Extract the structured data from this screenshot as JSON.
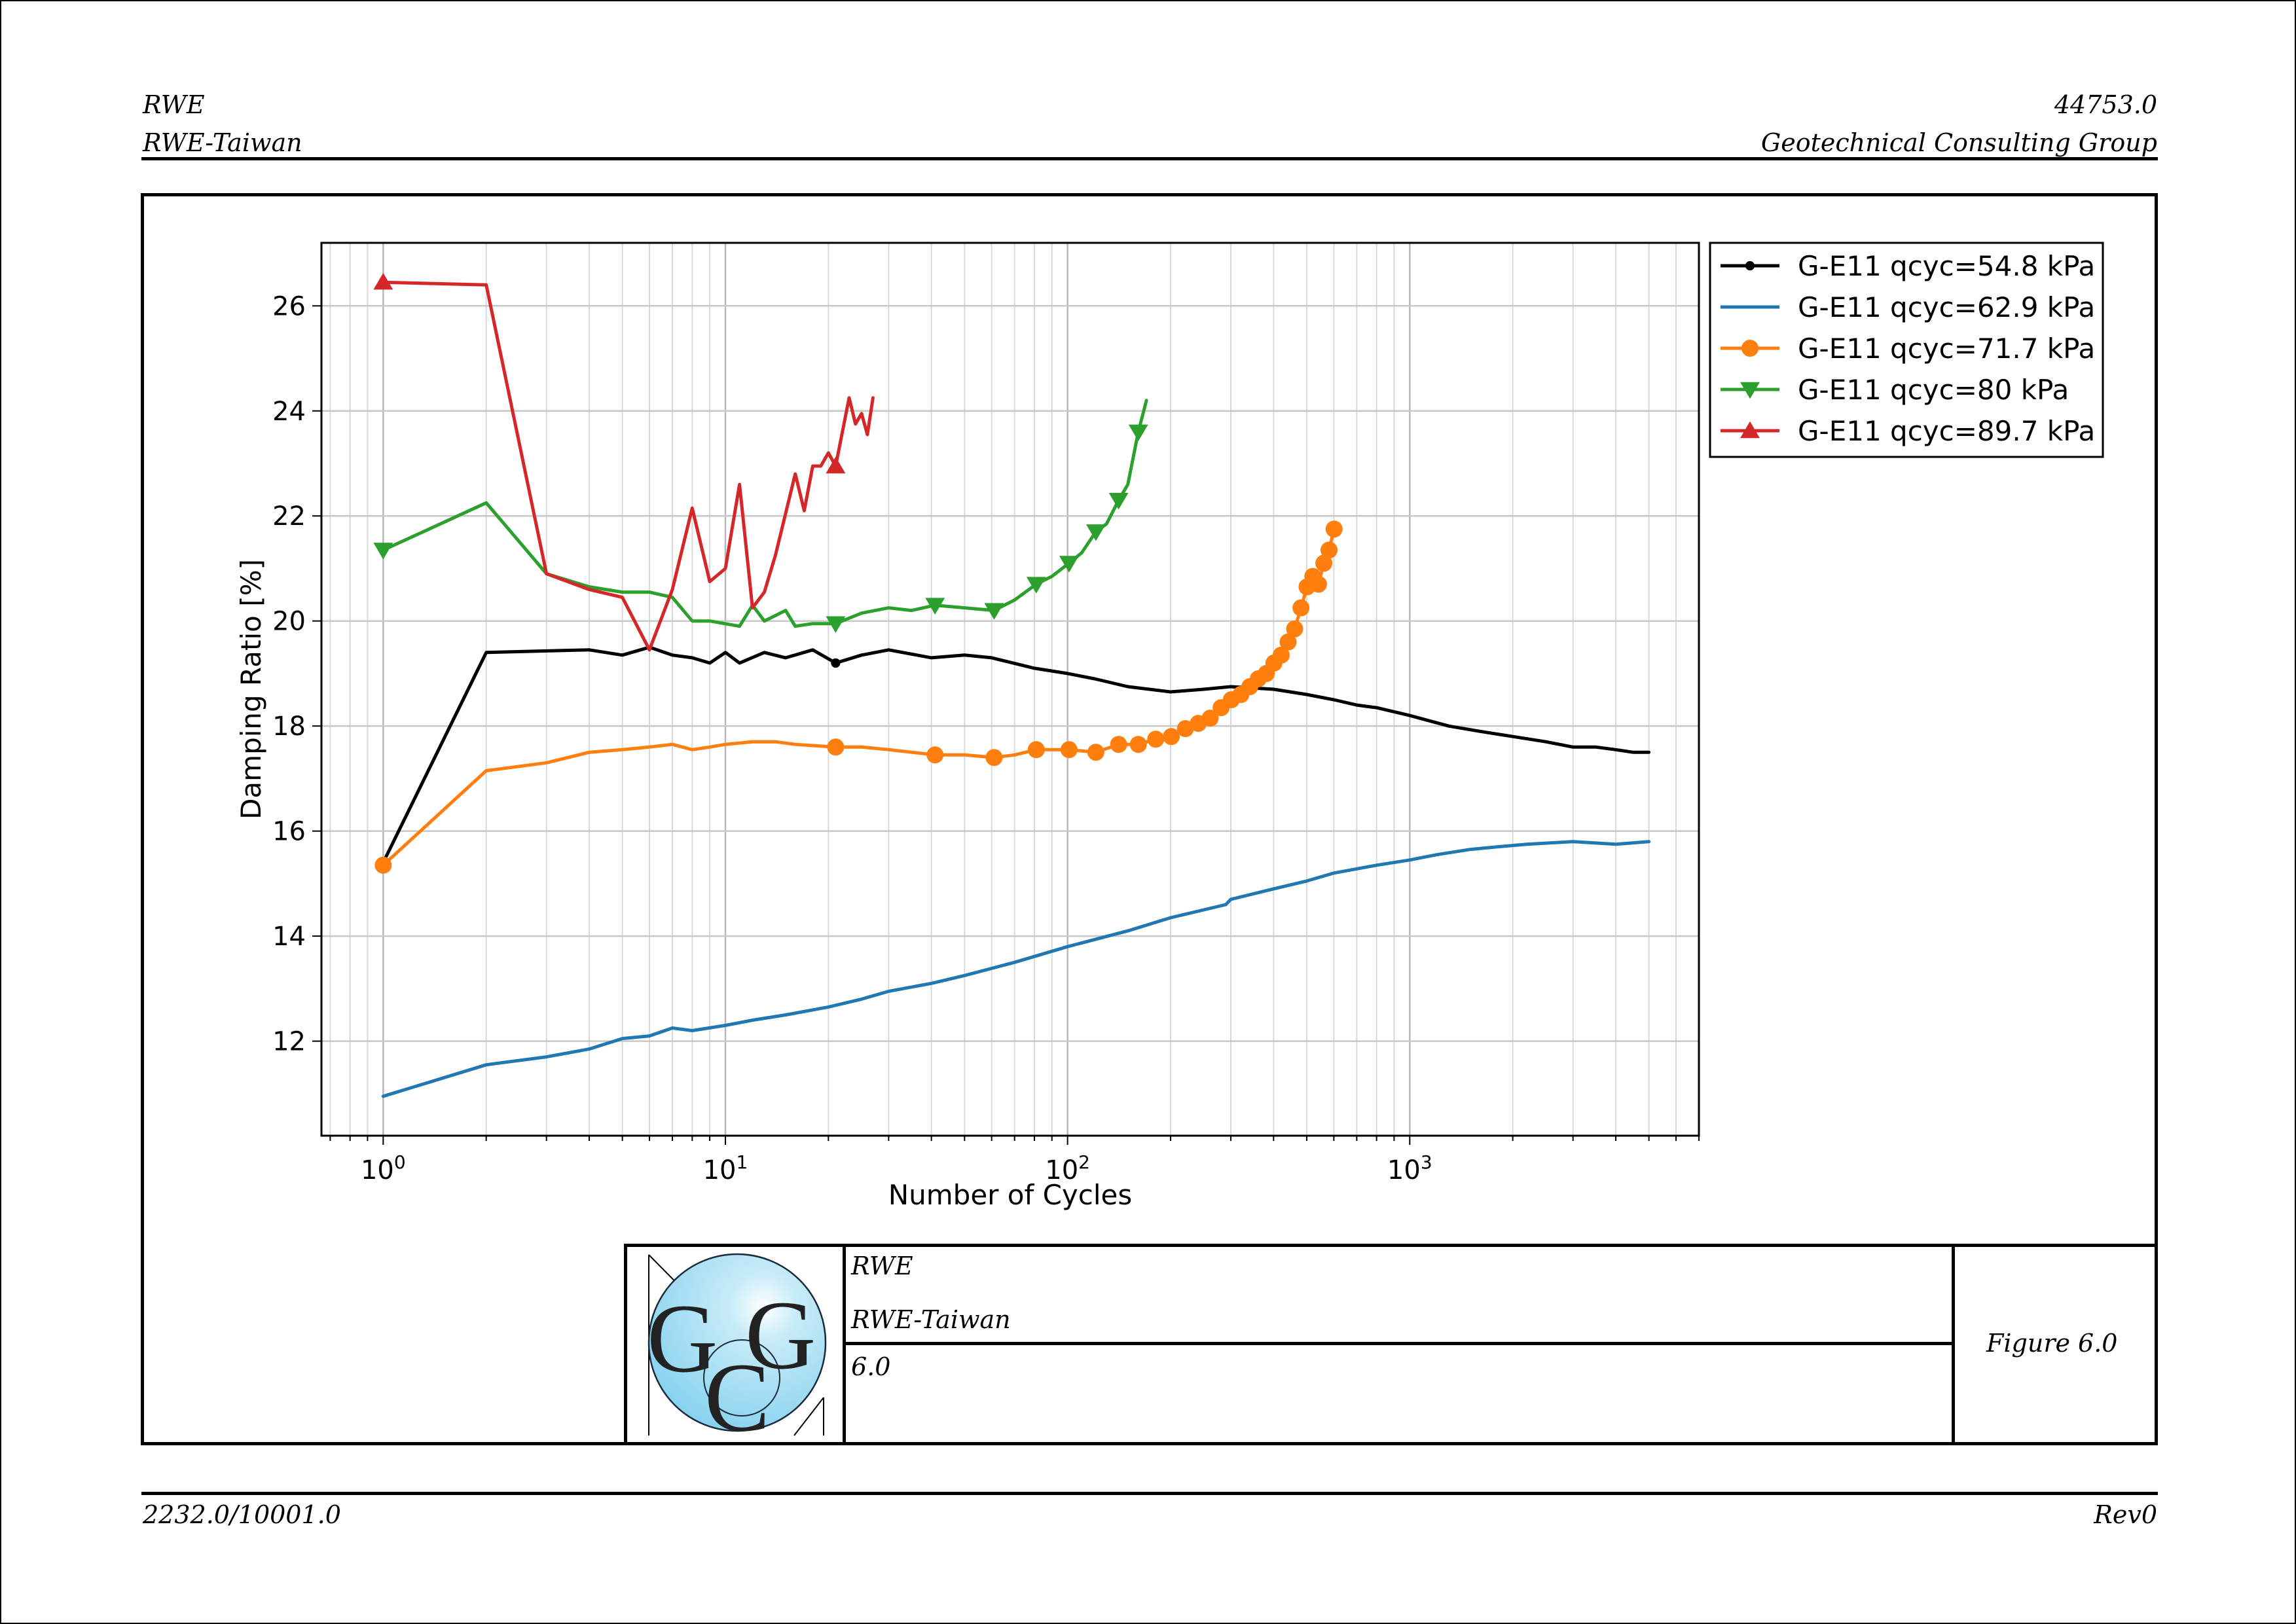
{
  "header": {
    "left_line1": "RWE",
    "left_line2": "RWE-Taiwan",
    "right_line1": "44753.0",
    "right_line2": "Geotechnical Consulting Group"
  },
  "footer": {
    "left": "2232.0/10001.0",
    "right": "Rev0"
  },
  "title_block": {
    "logo_text": "GCG",
    "client": "RWE",
    "project": "RWE-Taiwan",
    "number": "6.0",
    "figure": "Figure 6.0"
  },
  "chart_data": {
    "type": "line",
    "xscale": "log",
    "xlabel": "Number of Cycles",
    "ylabel": "Damping Ratio [%]",
    "xlim": [
      0.66,
      7000
    ],
    "ylim": [
      10.2,
      27.2
    ],
    "x_ticks": [
      {
        "base": "10",
        "exp": "0",
        "value": 1
      },
      {
        "base": "10",
        "exp": "1",
        "value": 10
      },
      {
        "base": "10",
        "exp": "2",
        "value": 100
      },
      {
        "base": "10",
        "exp": "3",
        "value": 1000
      }
    ],
    "y_ticks": [
      12,
      14,
      16,
      18,
      20,
      22,
      24,
      26
    ],
    "grid": true,
    "legend_position": "outside-top-right",
    "series": [
      {
        "name": "G-E11 qcyc=54.8 kPa",
        "color": "#000000",
        "marker": "circle-small",
        "line_width": 5,
        "marker_points": [
          [
            1,
            15.4
          ],
          [
            21,
            19.2
          ]
        ],
        "points": [
          [
            1,
            15.4
          ],
          [
            2,
            19.4
          ],
          [
            4,
            19.45
          ],
          [
            5,
            19.35
          ],
          [
            6,
            19.5
          ],
          [
            7,
            19.35
          ],
          [
            8,
            19.3
          ],
          [
            9,
            19.2
          ],
          [
            10,
            19.4
          ],
          [
            11,
            19.2
          ],
          [
            13,
            19.4
          ],
          [
            15,
            19.3
          ],
          [
            18,
            19.45
          ],
          [
            21,
            19.2
          ],
          [
            25,
            19.35
          ],
          [
            30,
            19.45
          ],
          [
            40,
            19.3
          ],
          [
            50,
            19.35
          ],
          [
            60,
            19.3
          ],
          [
            80,
            19.1
          ],
          [
            100,
            19.0
          ],
          [
            120,
            18.9
          ],
          [
            150,
            18.75
          ],
          [
            200,
            18.65
          ],
          [
            250,
            18.7
          ],
          [
            300,
            18.75
          ],
          [
            400,
            18.7
          ],
          [
            500,
            18.6
          ],
          [
            600,
            18.5
          ],
          [
            700,
            18.4
          ],
          [
            800,
            18.35
          ],
          [
            1000,
            18.2
          ],
          [
            1300,
            18.0
          ],
          [
            1600,
            17.9
          ],
          [
            2000,
            17.8
          ],
          [
            2500,
            17.7
          ],
          [
            3000,
            17.6
          ],
          [
            3500,
            17.6
          ],
          [
            4000,
            17.55
          ],
          [
            4500,
            17.5
          ],
          [
            5000,
            17.5
          ]
        ]
      },
      {
        "name": "G-E11 qcyc=62.9 kPa",
        "color": "#1f77b4",
        "marker": "none",
        "line_width": 5,
        "marker_points": [],
        "points": [
          [
            1,
            10.95
          ],
          [
            2,
            11.55
          ],
          [
            3,
            11.7
          ],
          [
            4,
            11.85
          ],
          [
            5,
            12.05
          ],
          [
            6,
            12.1
          ],
          [
            7,
            12.25
          ],
          [
            8,
            12.2
          ],
          [
            10,
            12.3
          ],
          [
            12,
            12.4
          ],
          [
            15,
            12.5
          ],
          [
            20,
            12.65
          ],
          [
            25,
            12.8
          ],
          [
            30,
            12.95
          ],
          [
            40,
            13.1
          ],
          [
            50,
            13.25
          ],
          [
            70,
            13.5
          ],
          [
            100,
            13.8
          ],
          [
            150,
            14.1
          ],
          [
            200,
            14.35
          ],
          [
            250,
            14.5
          ],
          [
            290,
            14.6
          ],
          [
            300,
            14.7
          ],
          [
            400,
            14.9
          ],
          [
            500,
            15.05
          ],
          [
            600,
            15.2
          ],
          [
            800,
            15.35
          ],
          [
            1000,
            15.45
          ],
          [
            1200,
            15.55
          ],
          [
            1500,
            15.65
          ],
          [
            1800,
            15.7
          ],
          [
            2200,
            15.75
          ],
          [
            3000,
            15.8
          ],
          [
            4000,
            15.75
          ],
          [
            5000,
            15.8
          ]
        ]
      },
      {
        "name": "G-E11 qcyc=71.7 kPa",
        "color": "#ff7f0e",
        "marker": "circle",
        "line_width": 5,
        "marker_points": [
          [
            1,
            15.35
          ],
          [
            21,
            17.6
          ],
          [
            41,
            17.45
          ],
          [
            61,
            17.4
          ],
          [
            81,
            17.55
          ],
          [
            101,
            17.55
          ],
          [
            121,
            17.5
          ],
          [
            141,
            17.65
          ],
          [
            161,
            17.65
          ],
          [
            181,
            17.75
          ],
          [
            201,
            17.8
          ],
          [
            221,
            17.95
          ],
          [
            241,
            18.05
          ],
          [
            261,
            18.15
          ],
          [
            281,
            18.35
          ],
          [
            301,
            18.5
          ],
          [
            321,
            18.6
          ],
          [
            341,
            18.75
          ],
          [
            361,
            18.9
          ],
          [
            381,
            19.0
          ],
          [
            401,
            19.2
          ],
          [
            421,
            19.35
          ],
          [
            441,
            19.6
          ],
          [
            461,
            19.85
          ],
          [
            481,
            20.25
          ],
          [
            501,
            20.65
          ],
          [
            521,
            20.85
          ],
          [
            541,
            20.7
          ],
          [
            561,
            21.1
          ],
          [
            581,
            21.35
          ],
          [
            601,
            21.75
          ]
        ],
        "points": [
          [
            1,
            15.35
          ],
          [
            2,
            17.15
          ],
          [
            3,
            17.3
          ],
          [
            4,
            17.5
          ],
          [
            5,
            17.55
          ],
          [
            6,
            17.6
          ],
          [
            7,
            17.65
          ],
          [
            8,
            17.55
          ],
          [
            9,
            17.6
          ],
          [
            10,
            17.65
          ],
          [
            12,
            17.7
          ],
          [
            14,
            17.7
          ],
          [
            16,
            17.65
          ],
          [
            21,
            17.6
          ],
          [
            25,
            17.6
          ],
          [
            30,
            17.55
          ],
          [
            41,
            17.45
          ],
          [
            50,
            17.45
          ],
          [
            61,
            17.4
          ],
          [
            70,
            17.45
          ],
          [
            81,
            17.55
          ],
          [
            101,
            17.55
          ],
          [
            121,
            17.5
          ],
          [
            141,
            17.65
          ],
          [
            161,
            17.65
          ],
          [
            181,
            17.75
          ],
          [
            201,
            17.8
          ],
          [
            221,
            17.95
          ],
          [
            241,
            18.05
          ],
          [
            261,
            18.15
          ],
          [
            281,
            18.35
          ],
          [
            301,
            18.5
          ],
          [
            321,
            18.6
          ],
          [
            341,
            18.75
          ],
          [
            361,
            18.9
          ],
          [
            381,
            19.0
          ],
          [
            401,
            19.2
          ],
          [
            421,
            19.35
          ],
          [
            441,
            19.6
          ],
          [
            461,
            19.85
          ],
          [
            481,
            20.25
          ],
          [
            501,
            20.65
          ],
          [
            521,
            20.85
          ],
          [
            541,
            20.7
          ],
          [
            561,
            21.1
          ],
          [
            581,
            21.35
          ],
          [
            601,
            21.75
          ]
        ]
      },
      {
        "name": "G-E11 qcyc=80 kPa",
        "color": "#2ca02c",
        "marker": "triangle-down",
        "line_width": 5,
        "marker_points": [
          [
            1,
            21.35
          ],
          [
            21,
            19.95
          ],
          [
            41,
            20.3
          ],
          [
            61,
            20.2
          ],
          [
            81,
            20.7
          ],
          [
            101,
            21.1
          ],
          [
            121,
            21.7
          ],
          [
            141,
            22.3
          ],
          [
            161,
            23.6
          ]
        ],
        "points": [
          [
            1,
            21.35
          ],
          [
            2,
            22.25
          ],
          [
            3,
            20.9
          ],
          [
            4,
            20.65
          ],
          [
            5,
            20.55
          ],
          [
            6,
            20.55
          ],
          [
            7,
            20.45
          ],
          [
            8,
            20.0
          ],
          [
            9,
            20.0
          ],
          [
            11,
            19.9
          ],
          [
            12,
            20.3
          ],
          [
            13,
            20.0
          ],
          [
            15,
            20.2
          ],
          [
            16,
            19.9
          ],
          [
            18,
            19.95
          ],
          [
            21,
            19.95
          ],
          [
            25,
            20.15
          ],
          [
            30,
            20.25
          ],
          [
            35,
            20.2
          ],
          [
            41,
            20.3
          ],
          [
            50,
            20.25
          ],
          [
            61,
            20.2
          ],
          [
            70,
            20.4
          ],
          [
            81,
            20.7
          ],
          [
            90,
            20.85
          ],
          [
            101,
            21.1
          ],
          [
            110,
            21.3
          ],
          [
            121,
            21.7
          ],
          [
            130,
            21.85
          ],
          [
            141,
            22.3
          ],
          [
            150,
            22.6
          ],
          [
            161,
            23.6
          ],
          [
            170,
            24.2
          ]
        ]
      },
      {
        "name": "G-E11 qcyc=89.7 kPa",
        "color": "#d62728",
        "marker": "triangle-up",
        "line_width": 5,
        "marker_points": [
          [
            1,
            26.45
          ],
          [
            21,
            22.95
          ]
        ],
        "points": [
          [
            1,
            26.45
          ],
          [
            2,
            26.4
          ],
          [
            3,
            20.9
          ],
          [
            4,
            20.6
          ],
          [
            5,
            20.45
          ],
          [
            6,
            19.45
          ],
          [
            7,
            20.6
          ],
          [
            8,
            22.15
          ],
          [
            9,
            20.75
          ],
          [
            10,
            21.0
          ],
          [
            11,
            22.6
          ],
          [
            12,
            20.25
          ],
          [
            13,
            20.55
          ],
          [
            14,
            21.25
          ],
          [
            16,
            22.8
          ],
          [
            17,
            22.1
          ],
          [
            18,
            22.95
          ],
          [
            19,
            22.95
          ],
          [
            20,
            23.2
          ],
          [
            21,
            22.95
          ],
          [
            23,
            24.25
          ],
          [
            24,
            23.75
          ],
          [
            25,
            23.95
          ],
          [
            26,
            23.55
          ],
          [
            27,
            24.25
          ]
        ]
      }
    ]
  }
}
